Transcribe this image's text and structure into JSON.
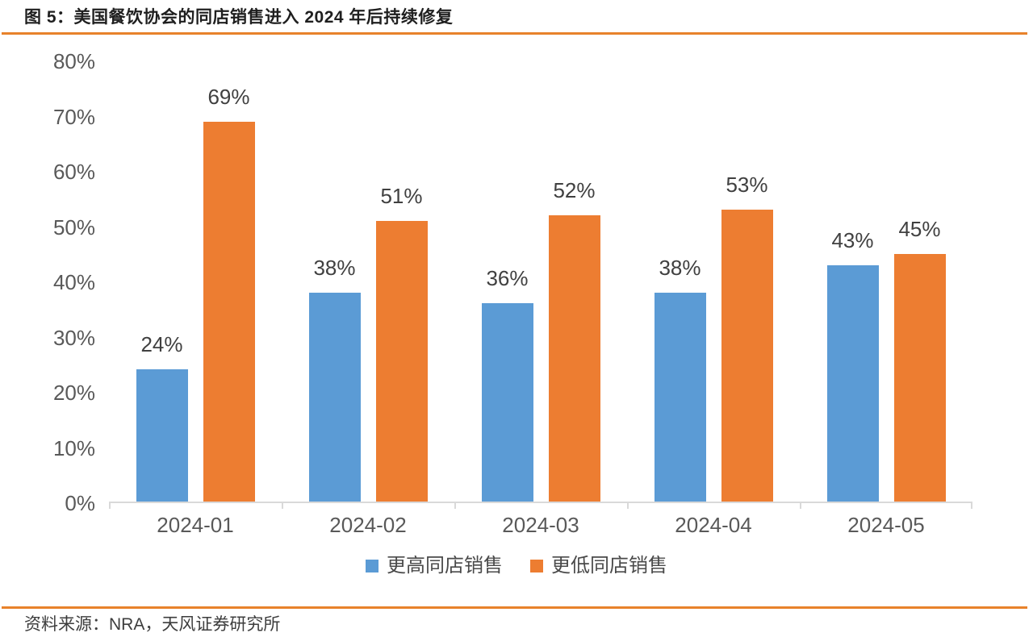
{
  "figure": {
    "title": "图 5：美国餐饮协会的同店销售进入 2024 年后持续修复",
    "source": "资料来源：NRA，天风证券研究所",
    "accent_color": "#e8822b",
    "axis_line_color": "#d9d9d9"
  },
  "chart_data": {
    "type": "bar",
    "title": "美国餐饮协会的同店销售进入 2024 年后持续修复",
    "categories": [
      "2024-01",
      "2024-02",
      "2024-03",
      "2024-04",
      "2024-05"
    ],
    "series": [
      {
        "name": "更高同店销售",
        "color": "#5b9bd5",
        "values": [
          24,
          38,
          36,
          38,
          43
        ]
      },
      {
        "name": "更低同店销售",
        "color": "#ed7d31",
        "values": [
          69,
          51,
          52,
          53,
          45
        ]
      }
    ],
    "value_suffix": "%",
    "ylim": [
      0,
      80
    ],
    "y_ticks": [
      "0%",
      "10%",
      "20%",
      "30%",
      "40%",
      "50%",
      "60%",
      "70%",
      "80%"
    ],
    "xlabel": "",
    "ylabel": "",
    "grid": false,
    "legend_position": "bottom",
    "data_labels": "outside-end"
  }
}
